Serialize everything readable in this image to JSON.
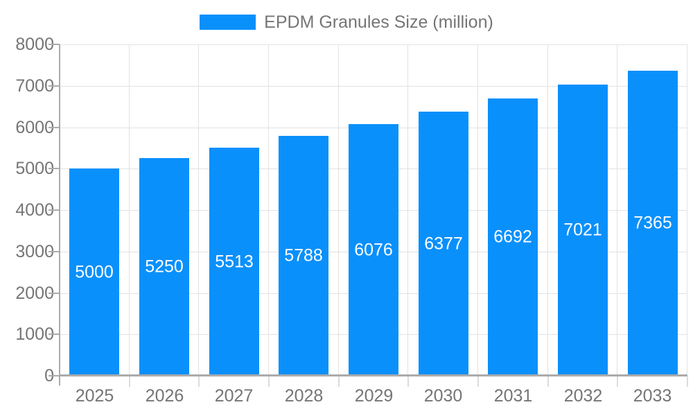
{
  "chart_data": {
    "type": "bar",
    "title": "EPDM Granules Size (million)",
    "legend_entries": [
      "EPDM Granules Size (million)"
    ],
    "legend_position": "top-center",
    "categories": [
      "2025",
      "2026",
      "2027",
      "2028",
      "2029",
      "2030",
      "2031",
      "2032",
      "2033"
    ],
    "series": [
      {
        "name": "EPDM Granules Size (million)",
        "values": [
          5000,
          5250,
          5513,
          5788,
          6076,
          6377,
          6692,
          7021,
          7365
        ]
      }
    ],
    "value_labels_shown": true,
    "xlabel": "",
    "ylabel": "",
    "ylim": [
      0,
      8000
    ],
    "yticks": [
      0,
      1000,
      2000,
      3000,
      4000,
      5000,
      6000,
      7000,
      8000
    ],
    "grid": true,
    "colors": {
      "bar": "#0a90fb",
      "value_label": "#ffffff",
      "tick_label": "#757575",
      "legend_text": "#757575",
      "gridline": "#e2e2e2",
      "axis_line": "#ababab"
    }
  }
}
